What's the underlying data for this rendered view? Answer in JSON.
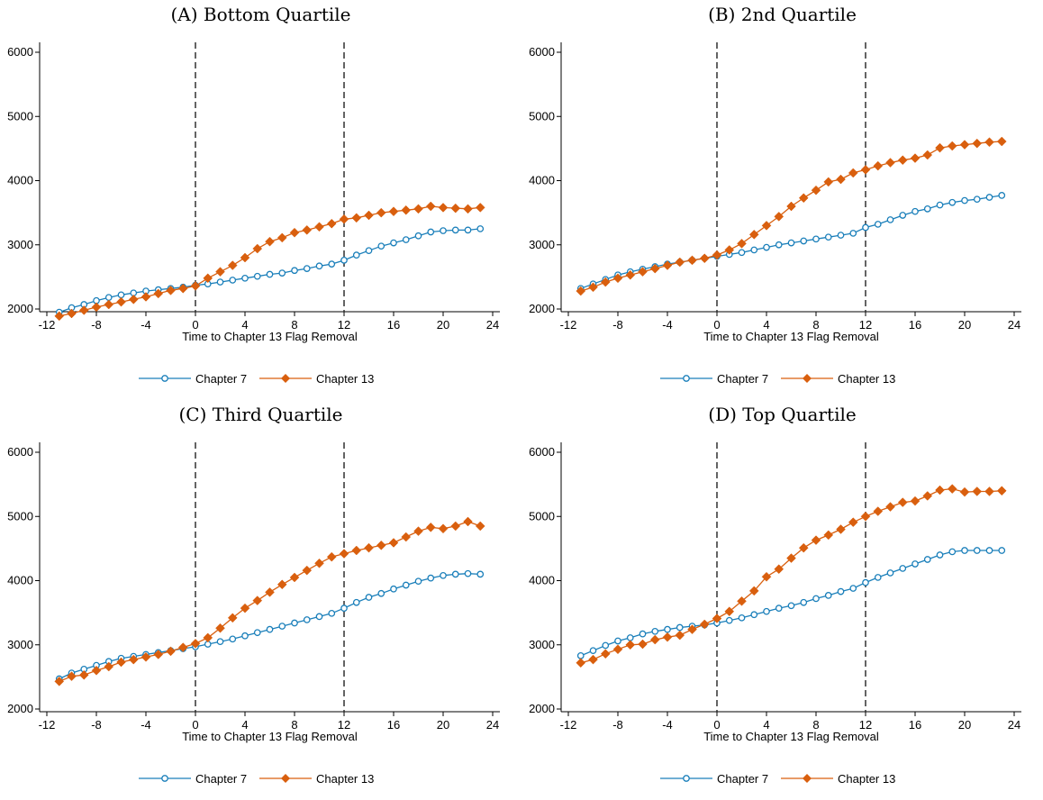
{
  "chart_data": [
    {
      "type": "line",
      "title": "(A) Bottom Quartile",
      "xlabel": "Time to Chapter 13 Flag Removal",
      "ylabel": "",
      "xlim": [
        -12,
        24
      ],
      "ylim": [
        2000,
        6000
      ],
      "xticks": [
        "-12",
        "-8",
        "-4",
        "0",
        "4",
        "8",
        "12",
        "16",
        "20",
        "24"
      ],
      "yticks": [
        "2000",
        "3000",
        "4000",
        "5000",
        "6000"
      ],
      "vlines": [
        0,
        12
      ],
      "x": [
        -11,
        -10,
        -9,
        -8,
        -7,
        -6,
        -5,
        -4,
        -3,
        -2,
        -1,
        0,
        1,
        2,
        3,
        4,
        5,
        6,
        7,
        8,
        9,
        10,
        11,
        12,
        13,
        14,
        15,
        16,
        17,
        18,
        19,
        20,
        21,
        22,
        23
      ],
      "series": [
        {
          "name": "Chapter 7",
          "color": "#1a7fba",
          "marker": "circle",
          "values": [
            1950,
            2020,
            2070,
            2130,
            2180,
            2220,
            2250,
            2280,
            2300,
            2320,
            2340,
            2370,
            2390,
            2420,
            2450,
            2480,
            2510,
            2540,
            2560,
            2600,
            2630,
            2670,
            2700,
            2760,
            2840,
            2910,
            2980,
            3030,
            3080,
            3140,
            3200,
            3220,
            3230,
            3230,
            3250
          ]
        },
        {
          "name": "Chapter 13",
          "color": "#d95f0e",
          "marker": "diamond",
          "values": [
            1890,
            1930,
            1980,
            2030,
            2070,
            2110,
            2150,
            2190,
            2240,
            2290,
            2320,
            2360,
            2480,
            2580,
            2680,
            2800,
            2940,
            3050,
            3110,
            3190,
            3230,
            3280,
            3330,
            3400,
            3420,
            3460,
            3500,
            3520,
            3540,
            3560,
            3600,
            3580,
            3570,
            3560,
            3580
          ]
        }
      ],
      "legend": "bottom"
    },
    {
      "type": "line",
      "title": "(B) 2nd Quartile",
      "xlabel": "Time to Chapter 13 Flag Removal",
      "ylabel": "",
      "xlim": [
        -12,
        24
      ],
      "ylim": [
        2000,
        6000
      ],
      "xticks": [
        "-12",
        "-8",
        "-4",
        "0",
        "4",
        "8",
        "12",
        "16",
        "20",
        "24"
      ],
      "yticks": [
        "2000",
        "3000",
        "4000",
        "5000",
        "6000"
      ],
      "vlines": [
        0,
        12
      ],
      "x": [
        -11,
        -10,
        -9,
        -8,
        -7,
        -6,
        -5,
        -4,
        -3,
        -2,
        -1,
        0,
        1,
        2,
        3,
        4,
        5,
        6,
        7,
        8,
        9,
        10,
        11,
        12,
        13,
        14,
        15,
        16,
        17,
        18,
        19,
        20,
        21,
        22,
        23
      ],
      "series": [
        {
          "name": "Chapter 7",
          "color": "#1a7fba",
          "marker": "circle",
          "values": [
            2320,
            2390,
            2460,
            2530,
            2580,
            2620,
            2660,
            2700,
            2730,
            2760,
            2790,
            2820,
            2850,
            2880,
            2920,
            2960,
            3000,
            3030,
            3060,
            3090,
            3120,
            3150,
            3180,
            3270,
            3320,
            3390,
            3460,
            3520,
            3560,
            3620,
            3660,
            3690,
            3710,
            3740,
            3770
          ]
        },
        {
          "name": "Chapter 13",
          "color": "#d95f0e",
          "marker": "diamond",
          "values": [
            2280,
            2340,
            2420,
            2480,
            2530,
            2580,
            2630,
            2680,
            2730,
            2760,
            2790,
            2840,
            2920,
            3020,
            3160,
            3300,
            3440,
            3600,
            3730,
            3850,
            3980,
            4020,
            4120,
            4170,
            4230,
            4280,
            4320,
            4350,
            4400,
            4510,
            4540,
            4560,
            4580,
            4600,
            4610
          ]
        }
      ],
      "legend": "bottom"
    },
    {
      "type": "line",
      "title": "(C) Third Quartile",
      "xlabel": "Time to Chapter 13 Flag Removal",
      "ylabel": "",
      "xlim": [
        -12,
        24
      ],
      "ylim": [
        2000,
        6000
      ],
      "xticks": [
        "-12",
        "-8",
        "-4",
        "0",
        "4",
        "8",
        "12",
        "16",
        "20",
        "24"
      ],
      "yticks": [
        "2000",
        "3000",
        "4000",
        "5000",
        "6000"
      ],
      "vlines": [
        0,
        12
      ],
      "x": [
        -11,
        -10,
        -9,
        -8,
        -7,
        -6,
        -5,
        -4,
        -3,
        -2,
        -1,
        0,
        1,
        2,
        3,
        4,
        5,
        6,
        7,
        8,
        9,
        10,
        11,
        12,
        13,
        14,
        15,
        16,
        17,
        18,
        19,
        20,
        21,
        22,
        23
      ],
      "series": [
        {
          "name": "Chapter 7",
          "color": "#1a7fba",
          "marker": "circle",
          "values": [
            2470,
            2560,
            2620,
            2680,
            2740,
            2790,
            2820,
            2850,
            2880,
            2910,
            2940,
            2970,
            3010,
            3050,
            3090,
            3140,
            3190,
            3240,
            3290,
            3340,
            3390,
            3440,
            3490,
            3570,
            3660,
            3740,
            3800,
            3870,
            3930,
            3990,
            4040,
            4080,
            4100,
            4110,
            4100
          ]
        },
        {
          "name": "Chapter 13",
          "color": "#d95f0e",
          "marker": "diamond",
          "values": [
            2430,
            2510,
            2530,
            2600,
            2660,
            2730,
            2770,
            2810,
            2850,
            2900,
            2960,
            3020,
            3110,
            3260,
            3420,
            3570,
            3690,
            3820,
            3940,
            4050,
            4160,
            4270,
            4370,
            4420,
            4470,
            4510,
            4550,
            4590,
            4680,
            4770,
            4830,
            4810,
            4850,
            4920,
            4850
          ]
        }
      ],
      "legend": "bottom"
    },
    {
      "type": "line",
      "title": "(D) Top Quartile",
      "xlabel": "Time to Chapter 13 Flag Removal",
      "ylabel": "",
      "xlim": [
        -12,
        24
      ],
      "ylim": [
        2000,
        6000
      ],
      "xticks": [
        "-12",
        "-8",
        "-4",
        "0",
        "4",
        "8",
        "12",
        "16",
        "20",
        "24"
      ],
      "yticks": [
        "2000",
        "3000",
        "4000",
        "5000",
        "6000"
      ],
      "vlines": [
        0,
        12
      ],
      "x": [
        -11,
        -10,
        -9,
        -8,
        -7,
        -6,
        -5,
        -4,
        -3,
        -2,
        -1,
        0,
        1,
        2,
        3,
        4,
        5,
        6,
        7,
        8,
        9,
        10,
        11,
        12,
        13,
        14,
        15,
        16,
        17,
        18,
        19,
        20,
        21,
        22,
        23
      ],
      "series": [
        {
          "name": "Chapter 7",
          "color": "#1a7fba",
          "marker": "circle",
          "values": [
            2830,
            2910,
            2990,
            3060,
            3110,
            3170,
            3210,
            3240,
            3270,
            3290,
            3310,
            3340,
            3380,
            3420,
            3470,
            3520,
            3570,
            3610,
            3660,
            3720,
            3770,
            3830,
            3880,
            3970,
            4050,
            4120,
            4190,
            4260,
            4330,
            4400,
            4450,
            4470,
            4470,
            4470,
            4470
          ]
        },
        {
          "name": "Chapter 13",
          "color": "#d95f0e",
          "marker": "diamond",
          "values": [
            2720,
            2770,
            2860,
            2930,
            3000,
            3010,
            3080,
            3120,
            3150,
            3240,
            3320,
            3410,
            3520,
            3680,
            3840,
            4060,
            4180,
            4350,
            4510,
            4630,
            4710,
            4800,
            4910,
            5000,
            5080,
            5150,
            5220,
            5240,
            5320,
            5410,
            5430,
            5380,
            5390,
            5390,
            5400
          ]
        }
      ],
      "legend": "bottom"
    }
  ]
}
